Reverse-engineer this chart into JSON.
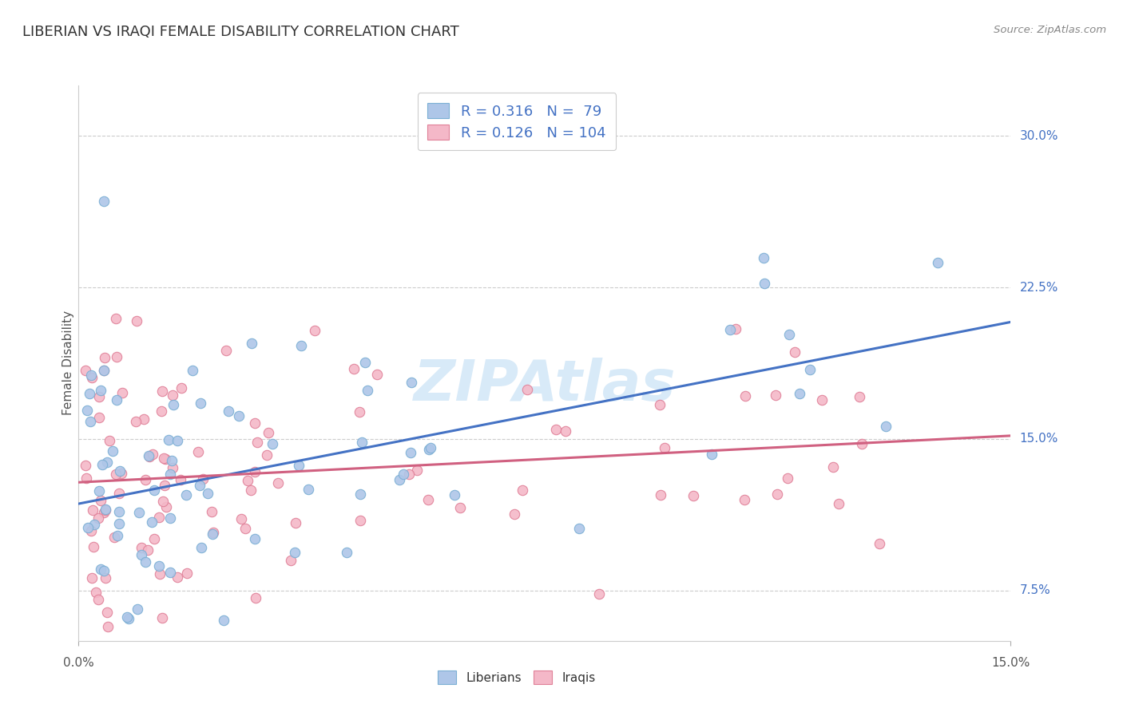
{
  "title": "LIBERIAN VS IRAQI FEMALE DISABILITY CORRELATION CHART",
  "source_text": "Source: ZipAtlas.com",
  "ylabel": "Female Disability",
  "xlim": [
    0.0,
    15.0
  ],
  "ylim": [
    5.0,
    32.5
  ],
  "ytick_labels": [
    "7.5%",
    "15.0%",
    "22.5%",
    "30.0%"
  ],
  "ytick_values": [
    7.5,
    15.0,
    22.5,
    30.0
  ],
  "blue_R": 0.316,
  "blue_N": 79,
  "pink_R": 0.126,
  "pink_N": 104,
  "blue_scatter_face": "#aec6e8",
  "blue_scatter_edge": "#7bafd4",
  "pink_scatter_face": "#f4b8c8",
  "pink_scatter_edge": "#e08098",
  "trendline_blue": "#4472c4",
  "trendline_pink": "#d06080",
  "grid_color": "#cccccc",
  "background_color": "#ffffff",
  "title_color": "#333333",
  "source_color": "#888888",
  "ylabel_color": "#555555",
  "tick_label_color": "#4472c4",
  "xtick_label_color": "#555555",
  "legend_label_color": "#4472c4",
  "watermark_color": "#d8eaf8",
  "bottom_legend_color": "#333333"
}
